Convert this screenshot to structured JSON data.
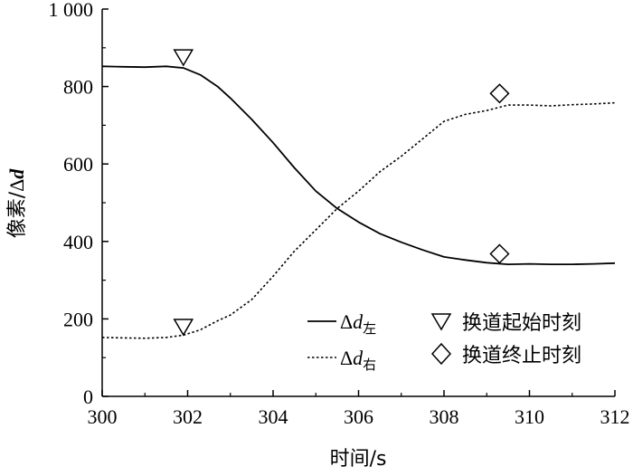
{
  "chart_data": {
    "type": "line",
    "xlabel": "时间/s",
    "ylabel_prefix": "像素/",
    "ylabel_var": "Δd",
    "xlim": [
      300,
      312
    ],
    "ylim": [
      0,
      1000
    ],
    "x_ticks": [
      300,
      302,
      304,
      306,
      308,
      310,
      312
    ],
    "x_tick_labels": [
      "300",
      "302",
      "304",
      "306",
      "308",
      "310",
      "312"
    ],
    "y_ticks": [
      0,
      200,
      400,
      600,
      800,
      1000
    ],
    "y_tick_labels": [
      "0",
      "200",
      "400",
      "600",
      "800",
      "1 000"
    ],
    "series": [
      {
        "name": "Δd左",
        "style": "solid",
        "x": [
          300,
          300.5,
          301,
          301.5,
          301.9,
          302.3,
          302.7,
          303.0,
          303.5,
          304.0,
          304.5,
          305.0,
          305.5,
          306.0,
          306.5,
          307.0,
          307.5,
          308.0,
          308.5,
          309.0,
          309.5,
          310.0,
          310.5,
          311.0,
          311.5,
          312.0
        ],
        "y": [
          852,
          851,
          850,
          852,
          848,
          830,
          800,
          770,
          715,
          655,
          590,
          530,
          485,
          450,
          420,
          398,
          378,
          360,
          352,
          345,
          341,
          342,
          341,
          341,
          342,
          344
        ]
      },
      {
        "name": "Δd右",
        "style": "dotted",
        "x": [
          300,
          300.5,
          301,
          301.5,
          301.9,
          302.3,
          302.7,
          303.0,
          303.5,
          304.0,
          304.5,
          305.0,
          305.5,
          306.0,
          306.5,
          307.0,
          307.5,
          308.0,
          308.5,
          309.0,
          309.5,
          310.0,
          310.5,
          311.0,
          311.5,
          312.0
        ],
        "y": [
          152,
          151,
          150,
          152,
          158,
          172,
          195,
          210,
          250,
          310,
          375,
          430,
          485,
          530,
          580,
          620,
          665,
          710,
          728,
          738,
          752,
          752,
          750,
          753,
          755,
          758
        ]
      }
    ],
    "markers": [
      {
        "name": "换道起始时刻",
        "shape": "triangle-down",
        "points": [
          [
            301.9,
            876
          ],
          [
            301.9,
            180
          ]
        ]
      },
      {
        "name": "换道终止时刻",
        "shape": "diamond",
        "points": [
          [
            309.3,
            782
          ],
          [
            309.3,
            368
          ]
        ]
      }
    ],
    "legend": {
      "position": "bottom-right",
      "lines": [
        {
          "prefix": "Δ",
          "var": "d",
          "sub": "左",
          "style": "solid"
        },
        {
          "prefix": "Δ",
          "var": "d",
          "sub": "右",
          "style": "dotted"
        }
      ],
      "markers": [
        {
          "label": "换道起始时刻",
          "shape": "triangle-down"
        },
        {
          "label": "换道终止时刻",
          "shape": "diamond"
        }
      ]
    },
    "grid": false
  }
}
